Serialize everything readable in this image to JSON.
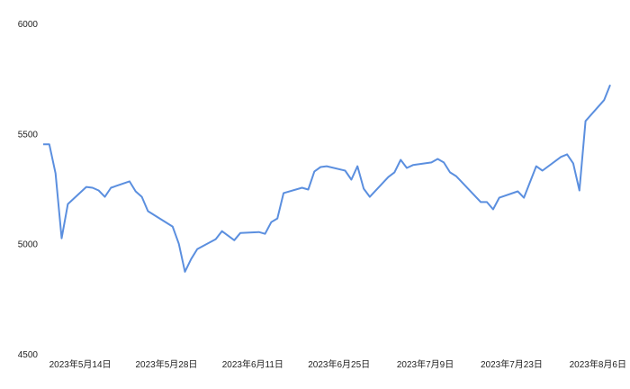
{
  "chart_data": {
    "type": "line",
    "title": "",
    "xlabel": "",
    "ylabel": "",
    "ylim": [
      4500,
      6000
    ],
    "xlim": [
      "2023-05-08",
      "2023-08-08"
    ],
    "grid": false,
    "y_ticks": [
      {
        "value": 4500,
        "label": "4500"
      },
      {
        "value": 5000,
        "label": "5000"
      },
      {
        "value": 5500,
        "label": "5500"
      },
      {
        "value": 6000,
        "label": "6000"
      }
    ],
    "x_ticks": [
      {
        "date": "2023-05-14",
        "label": "2023年5月14日"
      },
      {
        "date": "2023-05-28",
        "label": "2023年5月28日"
      },
      {
        "date": "2023-06-11",
        "label": "2023年6月11日"
      },
      {
        "date": "2023-06-25",
        "label": "2023年6月25日"
      },
      {
        "date": "2023-07-09",
        "label": "2023年7月9日"
      },
      {
        "date": "2023-07-23",
        "label": "2023年7月23日"
      },
      {
        "date": "2023-08-06",
        "label": "2023年8月6日"
      }
    ],
    "line_color": "#5b8fdf",
    "series": [
      {
        "x": [
          "2023-05-08",
          "2023-05-09",
          "2023-05-10",
          "2023-05-11",
          "2023-05-12",
          "2023-05-15",
          "2023-05-16",
          "2023-05-17",
          "2023-05-18",
          "2023-05-19",
          "2023-05-22",
          "2023-05-23",
          "2023-05-24",
          "2023-05-25",
          "2023-05-29",
          "2023-05-30",
          "2023-05-31",
          "2023-06-01",
          "2023-06-02",
          "2023-06-05",
          "2023-06-06",
          "2023-06-08",
          "2023-06-09",
          "2023-06-12",
          "2023-06-13",
          "2023-06-14",
          "2023-06-15",
          "2023-06-16",
          "2023-06-19",
          "2023-06-20",
          "2023-06-21",
          "2023-06-22",
          "2023-06-23",
          "2023-06-26",
          "2023-06-27",
          "2023-06-28",
          "2023-06-29",
          "2023-06-30",
          "2023-07-03",
          "2023-07-04",
          "2023-07-05",
          "2023-07-06",
          "2023-07-07",
          "2023-07-10",
          "2023-07-11",
          "2023-07-12",
          "2023-07-13",
          "2023-07-14",
          "2023-07-18",
          "2023-07-19",
          "2023-07-20",
          "2023-07-21",
          "2023-07-24",
          "2023-07-25",
          "2023-07-27",
          "2023-07-28",
          "2023-07-31",
          "2023-08-01",
          "2023-08-02",
          "2023-08-03",
          "2023-08-04",
          "2023-08-07",
          "2023-08-08"
        ],
        "values": [
          5455,
          5455,
          5324,
          5029,
          5184,
          5262,
          5258,
          5246,
          5217,
          5258,
          5287,
          5242,
          5217,
          5152,
          5082,
          5004,
          4877,
          4934,
          4980,
          5025,
          5061,
          5020,
          5053,
          5057,
          5049,
          5102,
          5119,
          5234,
          5258,
          5250,
          5332,
          5352,
          5356,
          5336,
          5295,
          5356,
          5254,
          5217,
          5307,
          5328,
          5385,
          5348,
          5361,
          5373,
          5389,
          5373,
          5328,
          5311,
          5193,
          5193,
          5160,
          5213,
          5242,
          5213,
          5356,
          5336,
          5398,
          5410,
          5369,
          5246,
          5561,
          5656,
          5725
        ]
      }
    ]
  }
}
